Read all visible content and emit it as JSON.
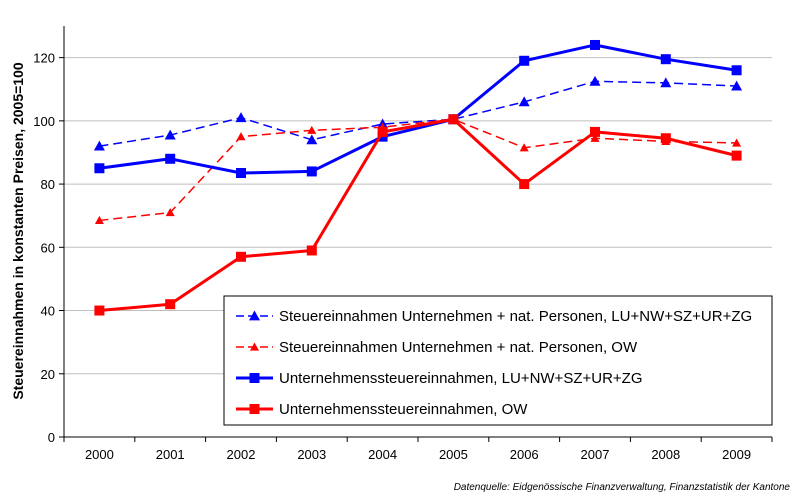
{
  "chart_data": {
    "type": "line",
    "title": "",
    "xlabel": "",
    "ylabel": "Steuereinnahmen in konstanten Preisen, 2005=100",
    "ylim": [
      0,
      130
    ],
    "yticks": [
      0,
      20,
      40,
      60,
      80,
      100,
      120
    ],
    "categories": [
      "2000",
      "2001",
      "2002",
      "2003",
      "2004",
      "2005",
      "2006",
      "2007",
      "2008",
      "2009"
    ],
    "grid": true,
    "legend_position": "bottom-right",
    "series": [
      {
        "name": "Steuereinnahmen Unternehmen + nat. Personen, LU+NW+SZ+UR+ZG",
        "color": "#0000ff",
        "style": "dashed",
        "marker": "triangle",
        "width": "thin",
        "values": [
          92,
          95.5,
          101,
          94,
          99,
          100.5,
          106,
          112.5,
          112,
          111
        ]
      },
      {
        "name": "Steuereinnahmen Unternehmen + nat. Personen, OW",
        "color": "#ff0000",
        "style": "dashed",
        "marker": "triangle",
        "width": "thin",
        "values": [
          68.5,
          71,
          95,
          97,
          98,
          100.5,
          91.5,
          94.5,
          93.5,
          93
        ]
      },
      {
        "name": "Unternehmenssteuereinnahmen, LU+NW+SZ+UR+ZG",
        "color": "#0000ff",
        "style": "solid",
        "marker": "square",
        "width": "thick",
        "values": [
          85,
          88,
          83.5,
          84,
          95,
          100.5,
          119,
          124,
          119.5,
          116
        ]
      },
      {
        "name": "Unternehmenssteuereinnahmen, OW",
        "color": "#ff0000",
        "style": "solid",
        "marker": "square",
        "width": "thick",
        "values": [
          40,
          42,
          57,
          59,
          96.5,
          100.5,
          80,
          96.5,
          94.5,
          89
        ]
      }
    ],
    "source": "Datenquelle: Eidgenössische Finanzverwaltung, Finanzstatistik der Kantone"
  }
}
